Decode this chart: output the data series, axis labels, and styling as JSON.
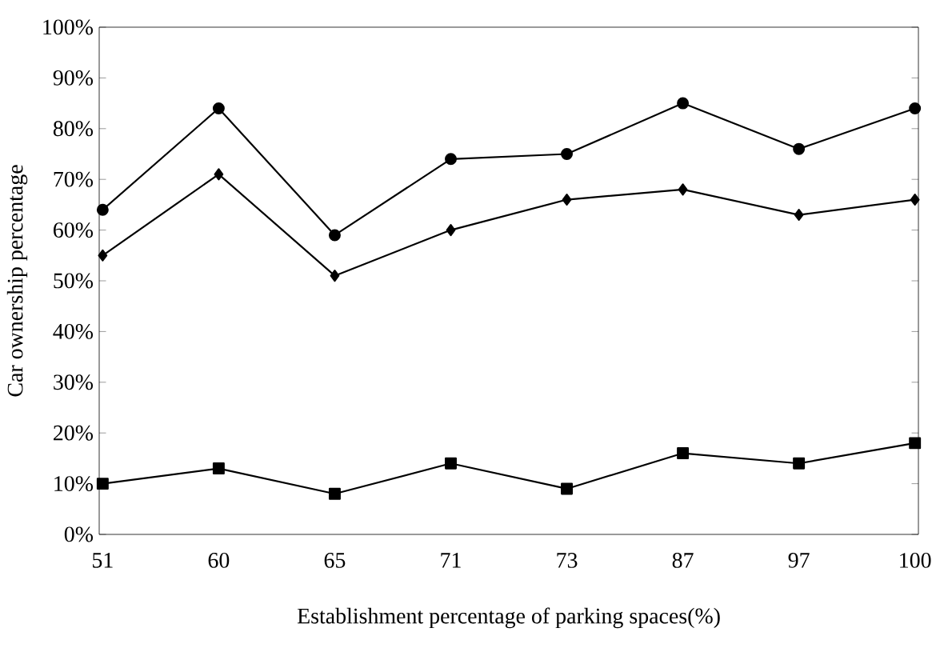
{
  "chart_data": {
    "type": "line",
    "xlabel": "Establishment percentage of parking spaces(%)",
    "ylabel": "Car ownership percentage",
    "categories": [
      "51",
      "60",
      "65",
      "71",
      "73",
      "87",
      "97",
      "100"
    ],
    "series": [
      {
        "color": "#000000",
        "marker": "circle",
        "values": [
          64,
          84,
          59,
          74,
          75,
          85,
          76,
          84
        ]
      },
      {
        "color": "#000000",
        "marker": "diamond",
        "values": [
          55,
          71,
          51,
          60,
          66,
          68,
          63,
          66
        ]
      },
      {
        "color": "#000000",
        "marker": "square",
        "values": [
          10,
          13,
          8,
          14,
          9,
          16,
          14,
          18
        ]
      }
    ],
    "ylim": [
      0,
      100
    ],
    "yticks": [
      {
        "value": 0,
        "label": "0%"
      },
      {
        "value": 10,
        "label": "10%"
      },
      {
        "value": 20,
        "label": "20%"
      },
      {
        "value": 30,
        "label": "30%"
      },
      {
        "value": 40,
        "label": "40%"
      },
      {
        "value": 50,
        "label": "50%"
      },
      {
        "value": 60,
        "label": "60%"
      },
      {
        "value": 70,
        "label": "70%"
      },
      {
        "value": 80,
        "label": "80%"
      },
      {
        "value": 90,
        "label": "90%"
      },
      {
        "value": 100,
        "label": "100%"
      }
    ],
    "grid": false,
    "line_style": "solid"
  }
}
